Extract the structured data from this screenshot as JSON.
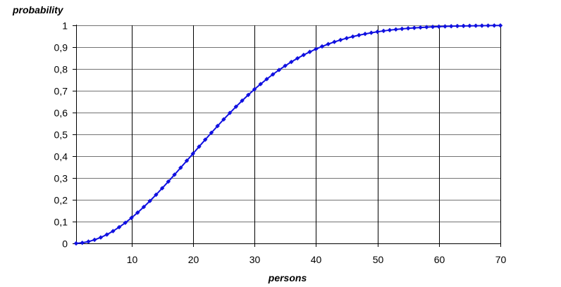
{
  "chart_data": {
    "type": "line",
    "xlabel": "persons",
    "ylabel": "probability",
    "xlim": [
      1,
      70
    ],
    "ylim": [
      0,
      1
    ],
    "xticks": [
      10,
      20,
      30,
      40,
      50,
      60,
      70
    ],
    "xtick_labels": [
      "10",
      "20",
      "30",
      "40",
      "50",
      "60",
      "70"
    ],
    "yticks": [
      0,
      0.1,
      0.2,
      0.3,
      0.4,
      0.5,
      0.6,
      0.7,
      0.8,
      0.9,
      1
    ],
    "ytick_labels": [
      "0",
      "0,1",
      "0,2",
      "0,3",
      "0,4",
      "0,5",
      "0,6",
      "0,7",
      "0,8",
      "0,9",
      "1"
    ],
    "grid": {
      "vertical": true,
      "horizontal": true
    },
    "legend": "none",
    "colors": {
      "series": "#1010e0",
      "grid": "#000000",
      "background": "#ffffff"
    },
    "series": [
      {
        "x": [
          1,
          2,
          3,
          4,
          5,
          6,
          7,
          8,
          9,
          10,
          11,
          12,
          13,
          14,
          15,
          16,
          17,
          18,
          19,
          20,
          21,
          22,
          23,
          24,
          25,
          26,
          27,
          28,
          29,
          30,
          31,
          32,
          33,
          34,
          35,
          36,
          37,
          38,
          39,
          40,
          41,
          42,
          43,
          44,
          45,
          46,
          47,
          48,
          49,
          50,
          51,
          52,
          53,
          54,
          55,
          56,
          57,
          58,
          59,
          60,
          61,
          62,
          63,
          64,
          65,
          66,
          67,
          68,
          69,
          70
        ],
        "values": [
          0,
          0.0027,
          0.0082,
          0.0164,
          0.0271,
          0.0405,
          0.0562,
          0.0743,
          0.0946,
          0.1169,
          0.1411,
          0.167,
          0.1944,
          0.2231,
          0.2529,
          0.2836,
          0.315,
          0.3469,
          0.3791,
          0.4114,
          0.4437,
          0.4757,
          0.5073,
          0.5383,
          0.5687,
          0.5982,
          0.6269,
          0.6545,
          0.681,
          0.7063,
          0.7305,
          0.7533,
          0.775,
          0.7953,
          0.8144,
          0.8322,
          0.8487,
          0.8641,
          0.8782,
          0.8912,
          0.9032,
          0.914,
          0.9239,
          0.9329,
          0.941,
          0.9483,
          0.9548,
          0.9606,
          0.9658,
          0.9704,
          0.9744,
          0.978,
          0.9811,
          0.9839,
          0.9863,
          0.9883,
          0.9901,
          0.9917,
          0.993,
          0.9941,
          0.9951,
          0.9959,
          0.9966,
          0.9972,
          0.9977,
          0.9981,
          0.9984,
          0.9987,
          0.999,
          0.9992
        ]
      }
    ]
  }
}
